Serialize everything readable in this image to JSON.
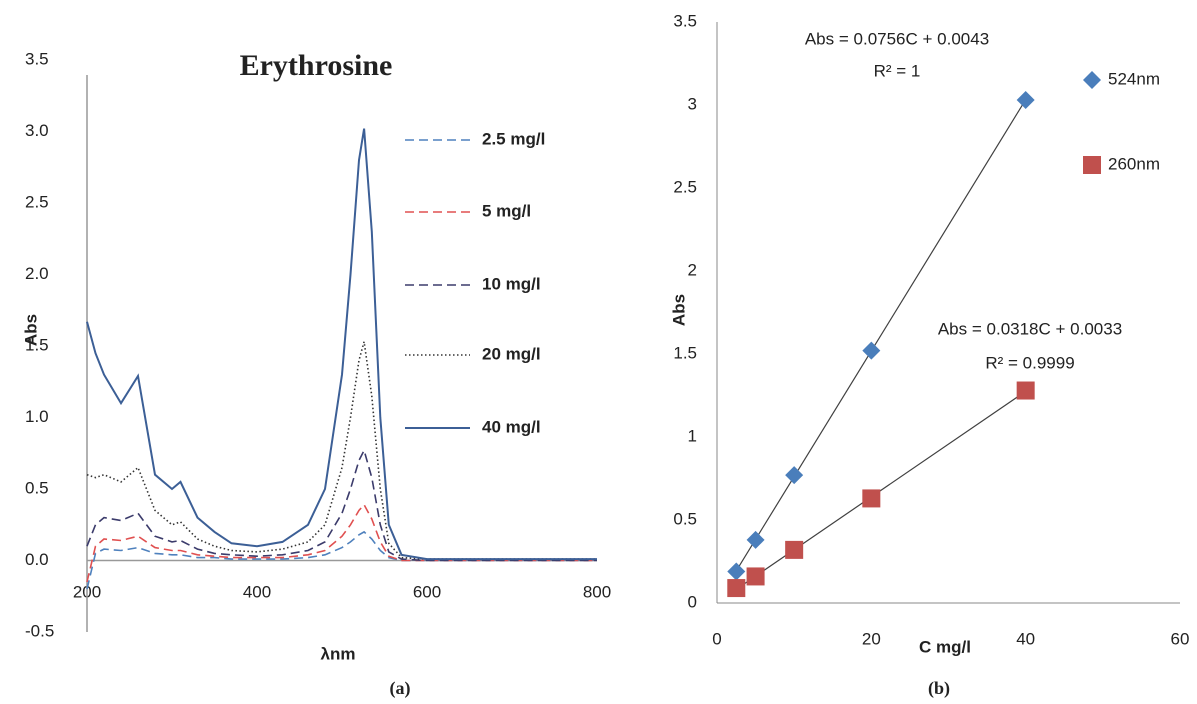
{
  "chart_data": [
    {
      "type": "line",
      "title": "Erythrosine",
      "x_label": "λnm",
      "y_label": "Abs",
      "caption": "(a)",
      "x": [
        200,
        210,
        220,
        240,
        260,
        280,
        300,
        310,
        330,
        350,
        370,
        400,
        430,
        460,
        480,
        500,
        510,
        520,
        526,
        535,
        545,
        555,
        570,
        600,
        700,
        800
      ],
      "xlim": [
        200,
        800
      ],
      "xticks": [
        200,
        400,
        600,
        800
      ],
      "ylim": [
        -0.5,
        3.5
      ],
      "yticks": [
        -0.5,
        {
          "value": 0,
          "label": "0.0"
        },
        0.5,
        {
          "value": 1,
          "label": "1.0"
        },
        1.5,
        {
          "value": 2,
          "label": "2.0"
        },
        2.5,
        {
          "value": 3,
          "label": "3.0"
        },
        3.5
      ],
      "legend": "right",
      "series": [
        {
          "name": "2.5 mg/l",
          "color": "#4f81bd",
          "dash": "dashed",
          "values": [
            -0.2,
            0.05,
            0.08,
            0.07,
            0.09,
            0.05,
            0.04,
            0.04,
            0.02,
            0.02,
            0.01,
            0.01,
            0.01,
            0.02,
            0.04,
            0.09,
            0.13,
            0.18,
            0.2,
            0.15,
            0.07,
            0.02,
            0,
            0,
            0,
            0
          ]
        },
        {
          "name": "5 mg/l",
          "color": "#e05050",
          "dash": "dashed",
          "values": [
            -0.15,
            0.1,
            0.15,
            0.14,
            0.17,
            0.09,
            0.07,
            0.07,
            0.04,
            0.03,
            0.02,
            0.02,
            0.02,
            0.04,
            0.07,
            0.17,
            0.25,
            0.35,
            0.39,
            0.29,
            0.13,
            0.03,
            0,
            0,
            0,
            0
          ]
        },
        {
          "name": "10 mg/l",
          "color": "#3b3b6b",
          "dash": "dashed",
          "values": [
            0.1,
            0.25,
            0.3,
            0.28,
            0.33,
            0.17,
            0.13,
            0.14,
            0.08,
            0.05,
            0.04,
            0.03,
            0.04,
            0.07,
            0.13,
            0.33,
            0.5,
            0.7,
            0.77,
            0.58,
            0.25,
            0.06,
            0.01,
            0,
            0,
            0
          ]
        },
        {
          "name": "20 mg/l",
          "color": "#333333",
          "dash": "dotted",
          "values": [
            0.6,
            0.58,
            0.6,
            0.55,
            0.65,
            0.35,
            0.25,
            0.27,
            0.15,
            0.1,
            0.07,
            0.06,
            0.08,
            0.13,
            0.25,
            0.65,
            1.0,
            1.4,
            1.53,
            1.15,
            0.5,
            0.12,
            0.02,
            0.01,
            0.01,
            0.01
          ]
        },
        {
          "name": "40 mg/l",
          "color": "#3c5f96",
          "dash": "solid",
          "values": [
            1.67,
            1.45,
            1.3,
            1.1,
            1.29,
            0.6,
            0.5,
            0.55,
            0.3,
            0.2,
            0.12,
            0.1,
            0.13,
            0.25,
            0.5,
            1.3,
            2.0,
            2.8,
            3.02,
            2.3,
            1.0,
            0.25,
            0.04,
            0.01,
            0.01,
            0.01
          ]
        }
      ]
    },
    {
      "type": "scatter",
      "x_label": "C mg/l",
      "y_label": "Abs",
      "caption": "(b)",
      "x": [
        2.5,
        5,
        10,
        20,
        40
      ],
      "xlim": [
        0,
        60
      ],
      "xticks": [
        0,
        20,
        40,
        60
      ],
      "ylim": [
        0,
        3.5
      ],
      "yticks": [
        0,
        0.5,
        1,
        1.5,
        2,
        2.5,
        3,
        3.5
      ],
      "legend": "right",
      "trendline": true,
      "series": [
        {
          "name": "524nm",
          "color": "#4a7ebb",
          "marker": "diamond",
          "values": [
            0.19,
            0.38,
            0.77,
            1.52,
            3.03
          ],
          "annotations": [
            "Abs = 0.0756C + 0.0043",
            "R² = 1"
          ]
        },
        {
          "name": "260nm",
          "color": "#c0504d",
          "marker": "square",
          "values": [
            0.09,
            0.16,
            0.32,
            0.63,
            1.28
          ],
          "annotations": [
            "Abs = 0.0318C + 0.0033",
            "R² = 0.9999"
          ]
        }
      ]
    }
  ]
}
